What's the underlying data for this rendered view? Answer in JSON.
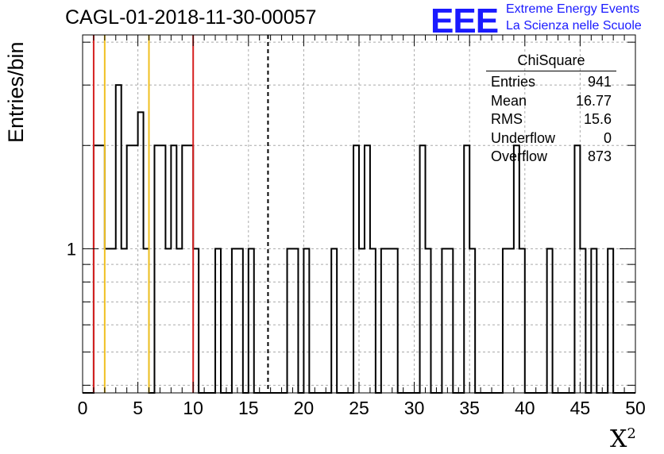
{
  "header": {
    "title": "CAGL-01-2018-11-30-00057",
    "logo_text": "EEE",
    "logo_line1": "Extreme Energy Events",
    "logo_line2": "La Scienza nelle Scuole"
  },
  "stats": {
    "name": "ChiSquare",
    "rows": [
      {
        "label": "Entries",
        "value": "941"
      },
      {
        "label": "Mean",
        "value": "16.77"
      },
      {
        "label": "RMS",
        "value": "15.6"
      },
      {
        "label": "Underflow",
        "value": "0"
      },
      {
        "label": "Overflow",
        "value": "873"
      }
    ]
  },
  "chart_data": {
    "type": "histogram",
    "title": "CAGL-01-2018-11-30-00057",
    "xlabel": "X",
    "xlabel_sup": "2",
    "ylabel": "Entries/bin",
    "xlim": [
      0,
      50
    ],
    "y_scale": "log",
    "ylim": [
      0.38,
      4.2
    ],
    "bin_width": 0.5,
    "x_ticks": [
      0,
      5,
      10,
      15,
      20,
      25,
      30,
      35,
      40,
      45,
      50
    ],
    "y_tick_labels": [
      {
        "value": 1,
        "label": "1"
      }
    ],
    "grid": true,
    "bins": [
      {
        "x": 1.0,
        "count": 2
      },
      {
        "x": 1.5,
        "count": 2
      },
      {
        "x": 2.0,
        "count": 1
      },
      {
        "x": 2.5,
        "count": 1
      },
      {
        "x": 3.0,
        "count": 3
      },
      {
        "x": 3.5,
        "count": 1
      },
      {
        "x": 4.0,
        "count": 2
      },
      {
        "x": 4.5,
        "count": 2
      },
      {
        "x": 5.0,
        "count": 2.5
      },
      {
        "x": 5.5,
        "count": 1
      },
      {
        "x": 6.5,
        "count": 2
      },
      {
        "x": 7.0,
        "count": 2
      },
      {
        "x": 7.5,
        "count": 1
      },
      {
        "x": 8.0,
        "count": 2
      },
      {
        "x": 8.5,
        "count": 1
      },
      {
        "x": 9.0,
        "count": 2
      },
      {
        "x": 9.5,
        "count": 2
      },
      {
        "x": 10.0,
        "count": 1
      },
      {
        "x": 12.0,
        "count": 1
      },
      {
        "x": 13.5,
        "count": 1
      },
      {
        "x": 14.0,
        "count": 1
      },
      {
        "x": 15.0,
        "count": 1
      },
      {
        "x": 18.5,
        "count": 1
      },
      {
        "x": 19.0,
        "count": 1
      },
      {
        "x": 20.0,
        "count": 1
      },
      {
        "x": 22.5,
        "count": 1
      },
      {
        "x": 24.5,
        "count": 2
      },
      {
        "x": 25.0,
        "count": 1
      },
      {
        "x": 25.5,
        "count": 2
      },
      {
        "x": 26.0,
        "count": 1
      },
      {
        "x": 27.0,
        "count": 1
      },
      {
        "x": 27.5,
        "count": 1
      },
      {
        "x": 28.0,
        "count": 1
      },
      {
        "x": 30.5,
        "count": 2
      },
      {
        "x": 31.0,
        "count": 1
      },
      {
        "x": 32.5,
        "count": 1
      },
      {
        "x": 33.0,
        "count": 1
      },
      {
        "x": 34.5,
        "count": 2
      },
      {
        "x": 35.0,
        "count": 1
      },
      {
        "x": 38.0,
        "count": 1
      },
      {
        "x": 38.5,
        "count": 1
      },
      {
        "x": 39.0,
        "count": 2
      },
      {
        "x": 39.5,
        "count": 1
      },
      {
        "x": 42.0,
        "count": 1
      },
      {
        "x": 44.5,
        "count": 2
      },
      {
        "x": 45.0,
        "count": 1
      },
      {
        "x": 46.0,
        "count": 1
      },
      {
        "x": 47.5,
        "count": 1
      }
    ],
    "vertical_lines": [
      {
        "x": 1.0,
        "color": "#d62020",
        "style": "solid"
      },
      {
        "x": 2.0,
        "color": "#f0c020",
        "style": "solid"
      },
      {
        "x": 6.0,
        "color": "#f0c020",
        "style": "solid"
      },
      {
        "x": 10.0,
        "color": "#d62020",
        "style": "solid"
      },
      {
        "x": 16.77,
        "color": "#000000",
        "style": "dashed"
      }
    ]
  }
}
